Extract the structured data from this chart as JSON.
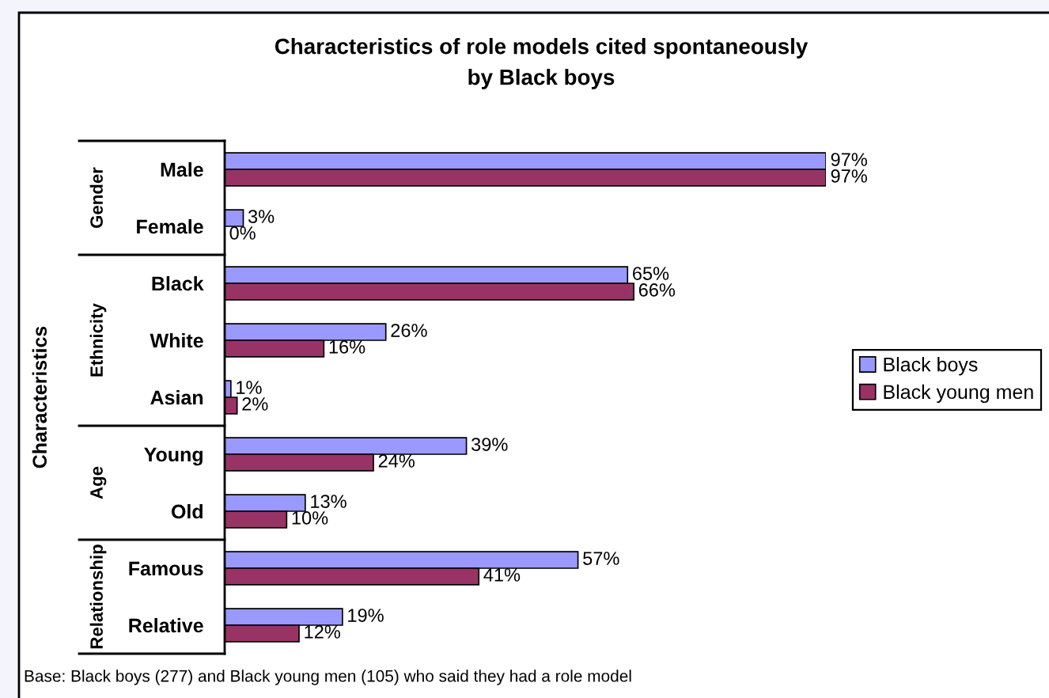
{
  "chart_data": {
    "type": "bar",
    "orientation": "horizontal",
    "title": "Characteristics of role models cited spontaneously\nby Black boys",
    "ylabel": "Characteristics",
    "categories": [
      "Male",
      "Female",
      "Black",
      "White",
      "Asian",
      "Young",
      "Old",
      "Famous",
      "Relative"
    ],
    "series": [
      {
        "name": "Black boys",
        "color": "#9999ff",
        "values": [
          97,
          3,
          65,
          26,
          1,
          39,
          13,
          57,
          19
        ],
        "value_labels": [
          "97%",
          "3%",
          "65%",
          "26%",
          "1%",
          "39%",
          "13%",
          "57%",
          "19%"
        ]
      },
      {
        "name": "Black young men",
        "color": "#993366",
        "values": [
          97,
          0,
          66,
          16,
          2,
          24,
          10,
          41,
          12
        ],
        "value_labels": [
          "97%",
          "0%",
          "66%",
          "16%",
          "2%",
          "24%",
          "10%",
          "41%",
          "12%"
        ]
      }
    ],
    "annotations": [
      "Gender",
      "Ethnicity",
      "Age",
      "Relationship",
      "Base: Black boys (277) and Black young men (105) who said they had a role model"
    ],
    "legend": "right"
  }
}
